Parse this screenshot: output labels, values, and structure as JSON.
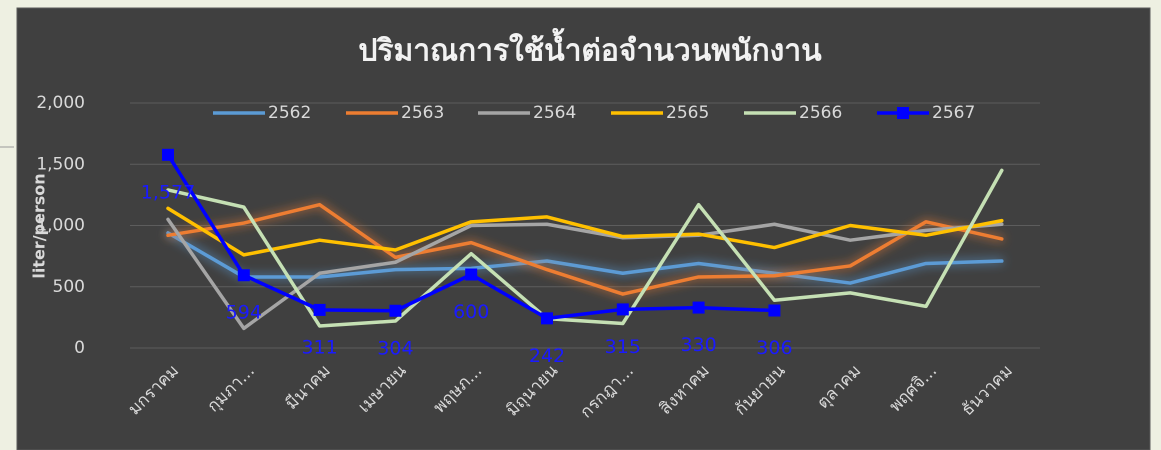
{
  "chart_data": {
    "type": "line",
    "title": "ปริมาณการใช้น้ำต่อจำนวนพนักงาน",
    "y_label": "liter/person",
    "categories": [
      "มกราคม",
      "กุมภา...",
      "มีนาคม",
      "เมษายน",
      "พฤษภ...",
      "มิถุนายน",
      "กรกฎา...",
      "สิงหาคม",
      "กันยายน",
      "ตุลาคม",
      "พฤศจิ...",
      "ธันวาคม"
    ],
    "ylim": [
      0,
      2000
    ],
    "yticks": [
      0,
      500,
      {
        "value": 1000,
        "label": "1,000"
      },
      {
        "value": 1500,
        "label": "1,500"
      },
      {
        "value": 2000,
        "label": "2,000"
      }
    ],
    "grid": true,
    "legend": "top",
    "series": [
      {
        "name": "2562",
        "color": "#5b9bd5",
        "values": [
          940,
          580,
          580,
          640,
          650,
          710,
          610,
          690,
          610,
          530,
          690,
          710
        ]
      },
      {
        "name": "2563",
        "color": "#ed7d31",
        "values": [
          920,
          1020,
          1170,
          740,
          860,
          640,
          440,
          580,
          590,
          670,
          1030,
          890
        ]
      },
      {
        "name": "2564",
        "color": "#a5a5a5",
        "values": [
          1050,
          160,
          610,
          700,
          1000,
          1010,
          900,
          920,
          1010,
          880,
          960,
          1010
        ]
      },
      {
        "name": "2565",
        "color": "#ffc000",
        "values": [
          1140,
          760,
          880,
          800,
          1030,
          1070,
          910,
          930,
          820,
          1000,
          920,
          1040
        ]
      },
      {
        "name": "2566",
        "color": "#c5e0b4",
        "values": [
          1290,
          1150,
          180,
          220,
          770,
          240,
          200,
          1170,
          390,
          450,
          340,
          1450
        ]
      },
      {
        "name": "2567",
        "color": "#0000ff",
        "marker": "square",
        "values": [
          1577,
          594,
          311,
          304,
          600,
          242,
          315,
          330,
          306,
          null,
          null,
          null
        ],
        "value_labels": [
          "1,577",
          "594",
          "311",
          "304",
          "600",
          "242",
          "315",
          "330",
          "306",
          null,
          null,
          null
        ]
      }
    ]
  }
}
